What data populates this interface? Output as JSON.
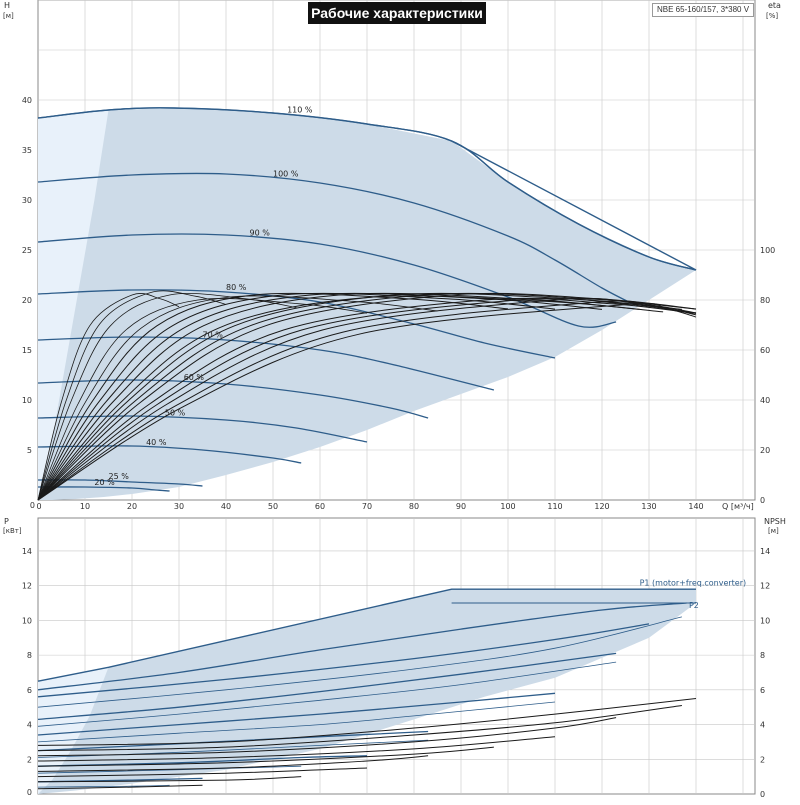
{
  "header": {
    "title": "Рабочие характеристики",
    "model": "NBE 65-160/157, 3*380 V"
  },
  "colors": {
    "envelope_fill": "#cddbe8",
    "low_region_fill": "#e8f1fa",
    "curve_blue": "#2e5d8a",
    "curve_black": "#1a1a1a",
    "grid": "#c8c8c8",
    "frame": "#888888"
  },
  "chart_data": [
    {
      "type": "line",
      "name": "pump-performance-top",
      "xlabel": "Q [м³/ч]",
      "ylabel": "H\n[м]",
      "y2label": "eta\n[%]",
      "xlim": [
        0,
        150
      ],
      "ylim": [
        0,
        50
      ],
      "y2lim": [
        0,
        200
      ],
      "x_ticks": [
        0,
        10,
        20,
        30,
        40,
        50,
        60,
        70,
        80,
        90,
        100,
        110,
        120,
        130,
        140
      ],
      "y_ticks": [
        0,
        5,
        10,
        15,
        20,
        25,
        30,
        35,
        40
      ],
      "y2_ticks": [
        0,
        20,
        40,
        60,
        80,
        100
      ],
      "grid": true,
      "envelope": {
        "x": [
          0,
          15,
          29,
          50,
          70,
          88,
          100,
          115,
          130,
          140,
          140,
          130,
          120,
          110,
          100,
          90,
          80,
          70,
          60,
          50,
          40,
          30,
          20,
          14,
          8,
          3,
          0
        ],
        "y": [
          38.2,
          39.0,
          39.2,
          38.7,
          37.6,
          35.9,
          31.8,
          27.6,
          24.3,
          23.0,
          23.0,
          20.0,
          17.0,
          14.3,
          12.3,
          10.6,
          8.9,
          7.0,
          5.3,
          3.8,
          2.5,
          1.3,
          0.6,
          0.3,
          0.1,
          0.0,
          0.0
        ]
      },
      "low_region": {
        "x": [
          0,
          15,
          12,
          9,
          6,
          3,
          0
        ],
        "y": [
          38.2,
          39.0,
          30.0,
          22.0,
          14.0,
          6.0,
          0.0
        ]
      },
      "speed_curves": [
        {
          "label": "110 %",
          "label_x": 53,
          "x": [
            0,
            15,
            29,
            50,
            70,
            88,
            100,
            115,
            130,
            140
          ],
          "y": [
            38.2,
            39.0,
            39.2,
            38.7,
            37.6,
            35.9,
            31.8,
            27.6,
            24.3,
            23.0
          ]
        },
        {
          "label": "100 %",
          "label_x": 50,
          "x": [
            0,
            20,
            40,
            60,
            80,
            100,
            110,
            120,
            127
          ],
          "y": [
            31.8,
            32.5,
            32.6,
            31.7,
            29.7,
            26.4,
            24.0,
            21.2,
            19.5
          ]
        },
        {
          "label": "90 %",
          "label_x": 45,
          "x": [
            0,
            20,
            40,
            60,
            80,
            100,
            115,
            123
          ],
          "y": [
            25.8,
            26.5,
            26.5,
            25.6,
            23.5,
            20.3,
            17.4,
            17.8
          ]
        },
        {
          "label": "80 %",
          "label_x": 40,
          "x": [
            0,
            20,
            40,
            60,
            80,
            95,
            110
          ],
          "y": [
            20.6,
            21.0,
            20.8,
            19.8,
            17.6,
            15.7,
            14.2
          ]
        },
        {
          "label": "70 %",
          "label_x": 35,
          "x": [
            0,
            20,
            40,
            60,
            75,
            97
          ],
          "y": [
            16.0,
            16.3,
            16.0,
            15.0,
            13.6,
            11.0
          ]
        },
        {
          "label": "60 %",
          "label_x": 31,
          "x": [
            0,
            20,
            40,
            60,
            75,
            83
          ],
          "y": [
            11.7,
            12.0,
            11.6,
            10.5,
            9.2,
            8.2
          ]
        },
        {
          "label": "50 %",
          "label_x": 27,
          "x": [
            0,
            20,
            40,
            55,
            70
          ],
          "y": [
            8.2,
            8.4,
            8.0,
            7.2,
            5.8
          ]
        },
        {
          "label": "40 %",
          "label_x": 23,
          "x": [
            0,
            20,
            35,
            50,
            56
          ],
          "y": [
            5.3,
            5.4,
            5.0,
            4.2,
            3.7
          ]
        },
        {
          "label": "25 %",
          "label_x": 15,
          "x": [
            0,
            10,
            20,
            30,
            35
          ],
          "y": [
            2.0,
            2.0,
            1.8,
            1.6,
            1.4
          ]
        },
        {
          "label": "20 %",
          "label_x": 12,
          "x": [
            0,
            10,
            20,
            25,
            28
          ],
          "y": [
            1.3,
            1.3,
            1.2,
            1.0,
            0.9
          ]
        }
      ],
      "efficiency_curves_peak_x": [
        20,
        24,
        28,
        34,
        40,
        46,
        52,
        58,
        64,
        70,
        76,
        82,
        88,
        95,
        102,
        110,
        118,
        124
      ],
      "efficiency_curves_peak_eta": [
        82,
        83,
        82,
        80,
        81,
        82,
        82,
        82,
        82,
        81,
        82,
        82,
        82,
        80,
        80,
        80,
        79,
        78
      ],
      "efficiency_curves_end_x": [
        30,
        40,
        55,
        70,
        85,
        100,
        110,
        120,
        128,
        133,
        137,
        140,
        140,
        140,
        140,
        140,
        140,
        140
      ]
    },
    {
      "type": "line",
      "name": "pump-power-npsh-bottom",
      "ylabel": "P\n[кВт]",
      "y2label": "NPSH\n[м]",
      "xlim": [
        0,
        150
      ],
      "ylim": [
        0,
        15
      ],
      "y2lim": [
        0,
        15
      ],
      "y_ticks": [
        0,
        2,
        4,
        6,
        8,
        10,
        12,
        14
      ],
      "y2_ticks": [
        0,
        2,
        4,
        6,
        8,
        10,
        12,
        14
      ],
      "grid": true,
      "series_labels": {
        "p1": "P1 (motor+freq.converter)",
        "p2": "P2"
      },
      "envelope": {
        "x": [
          0,
          15,
          88,
          140,
          140,
          130,
          110,
          95,
          80,
          60,
          40,
          20,
          8,
          0
        ],
        "y": [
          6.5,
          7.3,
          11.8,
          11.8,
          11.0,
          9.0,
          6.7,
          5.6,
          4.3,
          2.6,
          1.4,
          0.6,
          0.2,
          0.0
        ]
      },
      "low_region": {
        "x": [
          0,
          15,
          11,
          7,
          3,
          0
        ],
        "y": [
          6.5,
          7.3,
          4.5,
          2.5,
          0.8,
          0.0
        ]
      },
      "p1_curve": {
        "x": [
          0,
          15,
          88,
          140
        ],
        "y": [
          6.5,
          7.3,
          11.8,
          11.8
        ]
      },
      "p1_flat": {
        "x": [
          88,
          140
        ],
        "y": [
          11.8,
          11.8
        ]
      },
      "p2_curve": {
        "x": [
          0,
          30,
          60,
          90,
          120,
          138
        ],
        "y": [
          6.0,
          7.0,
          8.3,
          9.5,
          10.6,
          11.0
        ]
      },
      "power_curves": [
        {
          "x": [
            0,
            40,
            80,
            110,
            130
          ],
          "y": [
            5.6,
            6.6,
            7.8,
            8.9,
            9.8
          ]
        },
        {
          "x": [
            0,
            40,
            80,
            110,
            137
          ],
          "y": [
            5.0,
            6.0,
            7.2,
            8.4,
            10.2
          ]
        },
        {
          "x": [
            0,
            30,
            60,
            90,
            123
          ],
          "y": [
            4.3,
            5.0,
            5.9,
            6.9,
            8.1
          ]
        },
        {
          "x": [
            0,
            30,
            60,
            90,
            123
          ],
          "y": [
            3.9,
            4.6,
            5.4,
            6.3,
            7.6
          ]
        },
        {
          "x": [
            0,
            30,
            60,
            90,
            110
          ],
          "y": [
            3.4,
            4.0,
            4.6,
            5.3,
            5.8
          ]
        },
        {
          "x": [
            0,
            30,
            60,
            80,
            110
          ],
          "y": [
            3.0,
            3.5,
            4.0,
            4.5,
            5.3
          ]
        },
        {
          "x": [
            0,
            30,
            60,
            83
          ],
          "y": [
            2.5,
            2.9,
            3.3,
            3.6
          ]
        },
        {
          "x": [
            0,
            30,
            60,
            83
          ],
          "y": [
            2.1,
            2.4,
            2.8,
            3.1
          ]
        },
        {
          "x": [
            0,
            30,
            56,
            70
          ],
          "y": [
            1.6,
            1.8,
            2.1,
            2.2
          ]
        },
        {
          "x": [
            0,
            30,
            56
          ],
          "y": [
            1.2,
            1.4,
            1.6
          ]
        },
        {
          "x": [
            0,
            20,
            35
          ],
          "y": [
            0.7,
            0.8,
            0.9
          ]
        },
        {
          "x": [
            0,
            20,
            28
          ],
          "y": [
            0.4,
            0.45,
            0.5
          ]
        }
      ],
      "npsh_curves": [
        {
          "x": [
            0,
            40,
            80,
            110,
            140
          ],
          "y": [
            2.8,
            3.0,
            3.8,
            4.6,
            5.5
          ]
        },
        {
          "x": [
            0,
            40,
            80,
            110,
            137
          ],
          "y": [
            2.5,
            2.7,
            3.4,
            4.1,
            5.1
          ]
        },
        {
          "x": [
            0,
            40,
            80,
            110,
            123
          ],
          "y": [
            2.2,
            2.4,
            3.0,
            3.8,
            4.4
          ]
        },
        {
          "x": [
            0,
            40,
            80,
            110
          ],
          "y": [
            1.9,
            2.1,
            2.6,
            3.3
          ]
        },
        {
          "x": [
            0,
            40,
            80,
            97
          ],
          "y": [
            1.6,
            1.8,
            2.3,
            2.7
          ]
        },
        {
          "x": [
            0,
            40,
            70,
            83
          ],
          "y": [
            1.3,
            1.5,
            1.9,
            2.2
          ]
        },
        {
          "x": [
            0,
            40,
            70
          ],
          "y": [
            1.0,
            1.2,
            1.5
          ]
        },
        {
          "x": [
            0,
            40,
            56
          ],
          "y": [
            0.7,
            0.8,
            1.0
          ]
        },
        {
          "x": [
            0,
            20,
            35
          ],
          "y": [
            0.3,
            0.4,
            0.5
          ]
        }
      ]
    }
  ]
}
